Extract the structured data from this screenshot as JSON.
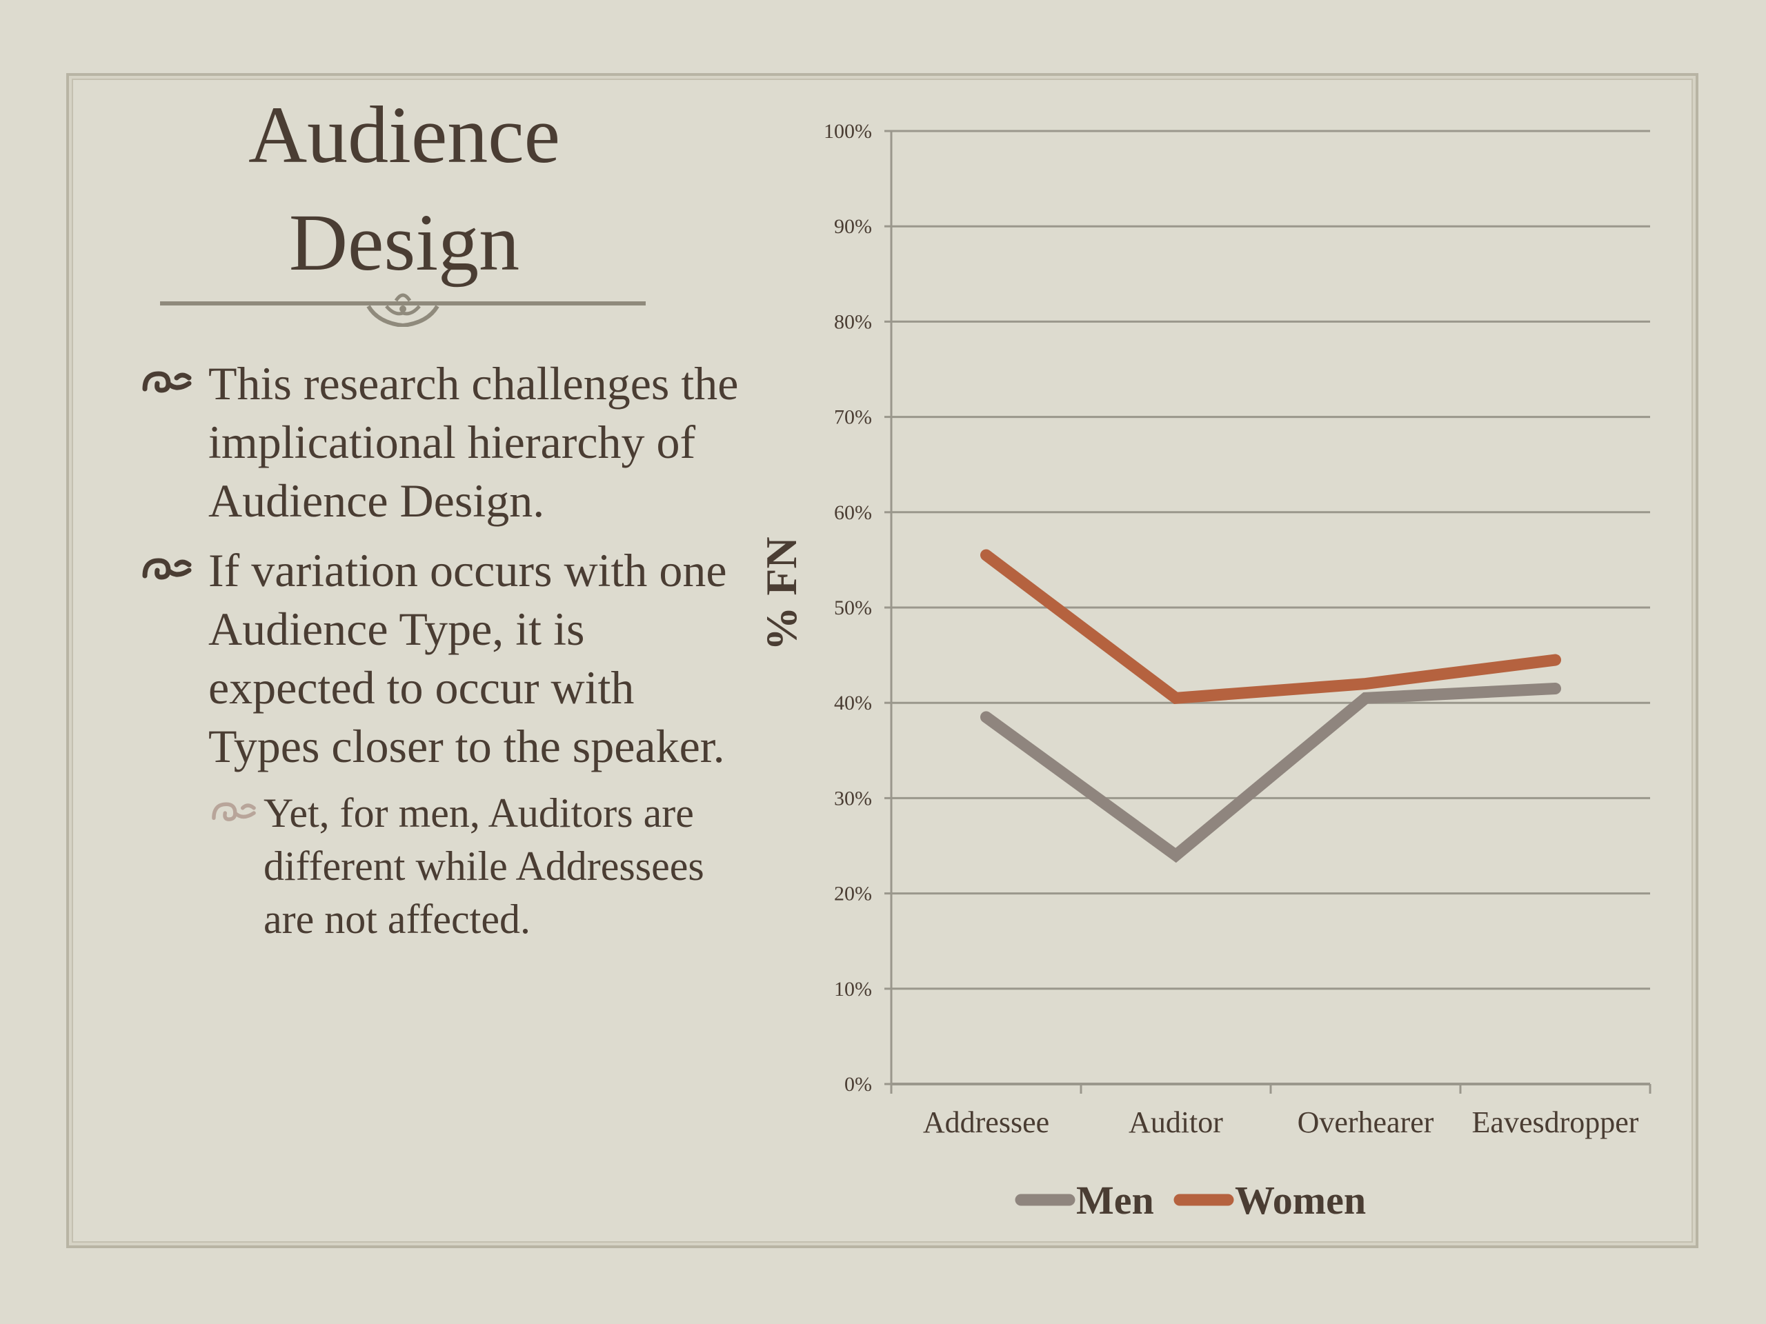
{
  "slide": {
    "title_line1": "Audience",
    "title_line2": "Design"
  },
  "bullets": [
    {
      "text": "This research challenges the implicational hierarchy of  Audience Design."
    },
    {
      "text": "If  variation occurs with one Audience Type, it is expected to occur with Types closer to the speaker."
    }
  ],
  "sub_bullets": [
    {
      "text": "Yet, for men, Auditors are different while Addressees are not affected."
    }
  ],
  "colors": {
    "men": "#8f857e",
    "women": "#b5623f",
    "text": "#4a3d33",
    "grid": "#9a978c"
  },
  "chart_data": {
    "type": "line",
    "categories": [
      "Addressee",
      "Auditor",
      "Overhearer",
      "Eavesdropper"
    ],
    "series": [
      {
        "name": "Men",
        "values": [
          38.5,
          24,
          40.5,
          41.5
        ]
      },
      {
        "name": "Women",
        "values": [
          55.5,
          40.5,
          42,
          44.5
        ]
      }
    ],
    "ylabel": "% FN",
    "ylim": [
      0,
      100
    ],
    "yticks": [
      "0%",
      "10%",
      "20%",
      "30%",
      "40%",
      "50%",
      "60%",
      "70%",
      "80%",
      "90%",
      "100%"
    ],
    "grid": true,
    "legend": "bottom"
  }
}
